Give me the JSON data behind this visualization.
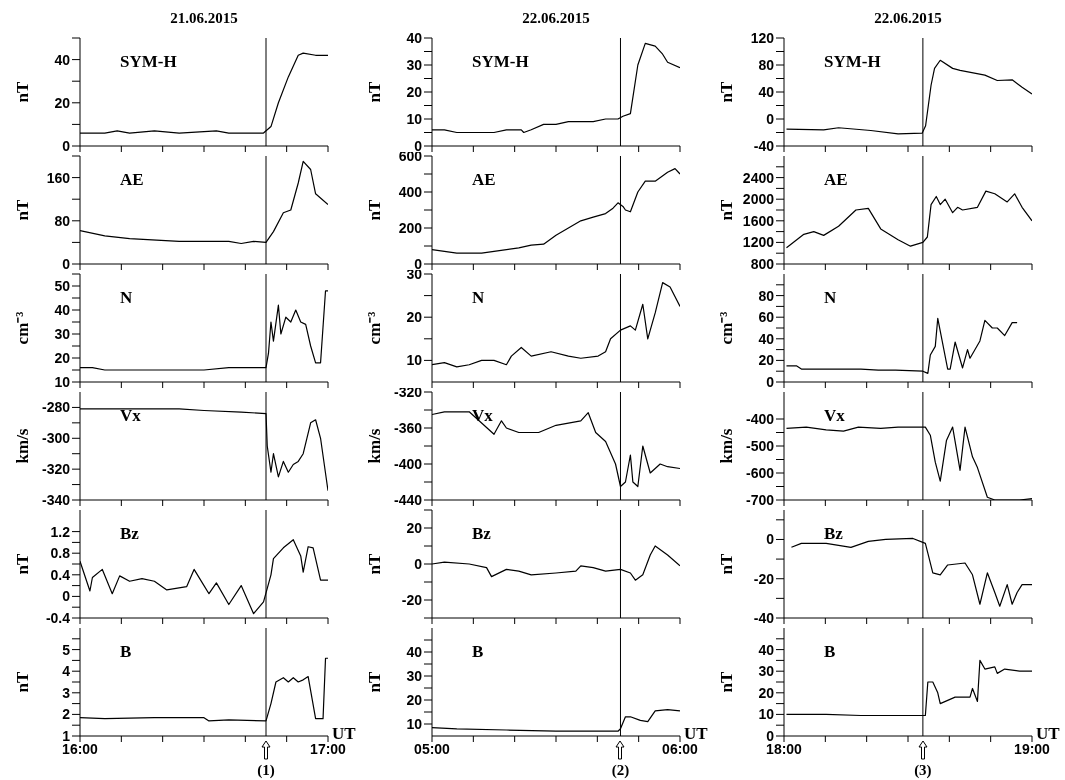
{
  "chart_data": [
    {
      "type": "line",
      "title": "21.06.2015",
      "ylabel": "nT",
      "tick_labels": "y",
      "xlim": [
        16,
        17
      ],
      "xticks": [
        {
          "value": 16,
          "label": null
        },
        {
          "value": 16.1667,
          "label": null
        },
        {
          "value": 16.3333,
          "label": null
        },
        {
          "value": 16.5,
          "label": null
        },
        {
          "value": 16.6667,
          "label": null
        },
        {
          "value": 16.8333,
          "label": null
        },
        {
          "value": 17,
          "label": null
        }
      ],
      "ylim": [
        0,
        50
      ],
      "yticks": [
        0,
        {
          "value": 10,
          "label": null
        },
        20,
        {
          "value": 30,
          "label": null
        },
        40,
        {
          "value": 50,
          "label": null
        }
      ],
      "ref_lines": [
        {
          "axis": "x",
          "value": 16.75
        }
      ],
      "x": [
        16.0,
        16.1,
        16.15,
        16.2,
        16.3,
        16.4,
        16.55,
        16.6,
        16.74,
        16.77,
        16.8,
        16.84,
        16.88,
        16.9,
        16.95,
        17.0
      ],
      "series": [
        {
          "name": "SYM-H",
          "color": "#000000",
          "values": [
            6,
            6,
            7,
            6,
            7,
            6,
            7,
            6,
            6,
            9,
            20,
            32,
            42,
            43,
            42,
            42
          ]
        }
      ]
    },
    {
      "type": "line",
      "ylabel": "nT",
      "tick_labels": "y",
      "xlim": [
        16,
        17
      ],
      "xticks": [
        {
          "value": 16,
          "label": null
        },
        {
          "value": 16.1667,
          "label": null
        },
        {
          "value": 16.3333,
          "label": null
        },
        {
          "value": 16.5,
          "label": null
        },
        {
          "value": 16.6667,
          "label": null
        },
        {
          "value": 16.8333,
          "label": null
        },
        {
          "value": 17,
          "label": null
        }
      ],
      "ylim": [
        0,
        200
      ],
      "yticks": [
        0,
        {
          "value": 40,
          "label": null
        },
        80,
        {
          "value": 120,
          "label": null
        },
        160,
        {
          "value": 200,
          "label": null
        }
      ],
      "ref_lines": [
        {
          "axis": "x",
          "value": 16.75
        }
      ],
      "x": [
        16.0,
        16.1,
        16.2,
        16.4,
        16.6,
        16.65,
        16.7,
        16.75,
        16.78,
        16.82,
        16.85,
        16.88,
        16.9,
        16.93,
        16.95,
        17.0
      ],
      "series": [
        {
          "name": "AE",
          "color": "#000000",
          "values": [
            62,
            52,
            47,
            42,
            42,
            38,
            42,
            40,
            60,
            95,
            100,
            150,
            190,
            175,
            130,
            110
          ]
        }
      ]
    },
    {
      "type": "line",
      "ylabel": "cm⁻³",
      "tick_labels": "y",
      "xlim": [
        16,
        17
      ],
      "xticks": [
        {
          "value": 16,
          "label": null
        },
        {
          "value": 16.1667,
          "label": null
        },
        {
          "value": 16.3333,
          "label": null
        },
        {
          "value": 16.5,
          "label": null
        },
        {
          "value": 16.6667,
          "label": null
        },
        {
          "value": 16.8333,
          "label": null
        },
        {
          "value": 17,
          "label": null
        }
      ],
      "ylim": [
        10,
        55
      ],
      "yticks": [
        10,
        {
          "value": 15,
          "label": null
        },
        20,
        {
          "value": 25,
          "label": null
        },
        30,
        {
          "value": 35,
          "label": null
        },
        40,
        {
          "value": 45,
          "label": null
        },
        50,
        {
          "value": 55,
          "label": null
        }
      ],
      "ref_lines": [
        {
          "axis": "x",
          "value": 16.75
        }
      ],
      "x": [
        16.0,
        16.05,
        16.1,
        16.5,
        16.6,
        16.75,
        16.76,
        16.77,
        16.78,
        16.8,
        16.81,
        16.83,
        16.85,
        16.87,
        16.89,
        16.91,
        16.93,
        16.95,
        16.97,
        16.99,
        17.0
      ],
      "series": [
        {
          "name": "N",
          "color": "#000000",
          "values": [
            16,
            16,
            15,
            15,
            16,
            16,
            22,
            35,
            27,
            42,
            30,
            37,
            35,
            40,
            35,
            34,
            25,
            18,
            18,
            48,
            48
          ]
        }
      ]
    },
    {
      "type": "line",
      "ylabel": "km/s",
      "tick_labels": "y",
      "xlim": [
        16,
        17
      ],
      "xticks": [
        {
          "value": 16,
          "label": null
        },
        {
          "value": 16.1667,
          "label": null
        },
        {
          "value": 16.3333,
          "label": null
        },
        {
          "value": 16.5,
          "label": null
        },
        {
          "value": 16.6667,
          "label": null
        },
        {
          "value": 16.8333,
          "label": null
        },
        {
          "value": 17,
          "label": null
        }
      ],
      "ylim": [
        -340,
        -270
      ],
      "yticks": [
        -340,
        {
          "value": -330,
          "label": null
        },
        -320,
        {
          "value": -310,
          "label": null
        },
        -300,
        {
          "value": -290,
          "label": null
        },
        -280
      ],
      "ref_lines": [
        {
          "axis": "x",
          "value": 16.75
        }
      ],
      "x": [
        16.0,
        16.4,
        16.5,
        16.65,
        16.75,
        16.755,
        16.77,
        16.78,
        16.8,
        16.82,
        16.84,
        16.86,
        16.88,
        16.9,
        16.93,
        16.95,
        16.97,
        17.0
      ],
      "series": [
        {
          "name": "Vx",
          "color": "#000000",
          "values": [
            -281,
            -281,
            -282,
            -283,
            -284,
            -305,
            -322,
            -310,
            -325,
            -315,
            -322,
            -317,
            -315,
            -310,
            -290,
            -288,
            -300,
            -334
          ]
        }
      ]
    },
    {
      "type": "line",
      "ylabel": "nT",
      "tick_labels": "y",
      "xlim": [
        16,
        17
      ],
      "xticks": [
        {
          "value": 16,
          "label": null
        },
        {
          "value": 16.1667,
          "label": null
        },
        {
          "value": 16.3333,
          "label": null
        },
        {
          "value": 16.5,
          "label": null
        },
        {
          "value": 16.6667,
          "label": null
        },
        {
          "value": 16.8333,
          "label": null
        },
        {
          "value": 17,
          "label": null
        }
      ],
      "ylim": [
        -0.4,
        1.6
      ],
      "yticks": [
        -0.4,
        {
          "value": -0.2,
          "label": null
        },
        0,
        {
          "value": 0.2,
          "label": null
        },
        0.4,
        {
          "value": 0.6,
          "label": null
        },
        0.8,
        {
          "value": 1,
          "label": null
        },
        1.2
      ],
      "ref_lines": [
        {
          "axis": "x",
          "value": 16.75
        }
      ],
      "x": [
        16.0,
        16.04,
        16.05,
        16.09,
        16.13,
        16.16,
        16.2,
        16.25,
        16.3,
        16.35,
        16.43,
        16.46,
        16.5,
        16.52,
        16.55,
        16.6,
        16.65,
        16.7,
        16.74,
        16.77,
        16.78,
        16.82,
        16.86,
        16.89,
        16.9,
        16.92,
        16.94,
        16.97,
        17.0
      ],
      "series": [
        {
          "name": "Bz",
          "color": "#000000",
          "values": [
            0.65,
            0.1,
            0.35,
            0.5,
            0.05,
            0.38,
            0.28,
            0.33,
            0.28,
            0.12,
            0.18,
            0.5,
            0.2,
            0.05,
            0.25,
            -0.15,
            0.2,
            -0.32,
            -0.1,
            0.4,
            0.7,
            0.9,
            1.05,
            0.75,
            0.45,
            0.92,
            0.9,
            0.3,
            0.3
          ]
        }
      ]
    },
    {
      "type": "line",
      "ylabel": "nT",
      "xlabel": "UT",
      "xlim": [
        16,
        17
      ],
      "xticks": [
        {
          "value": 16,
          "label": "16:00"
        },
        {
          "value": 16.1667,
          "label": null
        },
        {
          "value": 16.3333,
          "label": null
        },
        {
          "value": 16.5,
          "label": null
        },
        {
          "value": 16.6667,
          "label": null
        },
        {
          "value": 16.8333,
          "label": null
        },
        {
          "value": 17,
          "label": "17:00"
        }
      ],
      "ylim": [
        1,
        6
      ],
      "yticks": [
        1,
        {
          "value": 1.5,
          "label": null
        },
        2,
        {
          "value": 2.5,
          "label": null
        },
        3,
        {
          "value": 3.5,
          "label": null
        },
        4,
        {
          "value": 4.5,
          "label": null
        },
        5,
        {
          "value": 5.5,
          "label": null
        }
      ],
      "ref_lines": [
        {
          "axis": "x",
          "value": 16.75
        }
      ],
      "annotations": [
        "(1)"
      ],
      "x": [
        16.0,
        16.1,
        16.3,
        16.5,
        16.52,
        16.6,
        16.75,
        16.77,
        16.79,
        16.82,
        16.84,
        16.86,
        16.88,
        16.9,
        16.92,
        16.95,
        16.98,
        16.99,
        17.0
      ],
      "series": [
        {
          "name": "B",
          "color": "#000000",
          "values": [
            1.85,
            1.8,
            1.85,
            1.85,
            1.7,
            1.75,
            1.7,
            2.5,
            3.5,
            3.7,
            3.5,
            3.7,
            3.5,
            3.6,
            3.75,
            1.8,
            1.8,
            4.6,
            4.6
          ]
        }
      ]
    },
    {
      "type": "line",
      "title": "22.06.2015",
      "ylabel": "nT",
      "tick_labels": "y",
      "xlim": [
        5,
        6
      ],
      "xticks": [
        {
          "value": 5,
          "label": null
        },
        {
          "value": 5.1667,
          "label": null
        },
        {
          "value": 5.3333,
          "label": null
        },
        {
          "value": 5.5,
          "label": null
        },
        {
          "value": 5.6667,
          "label": null
        },
        {
          "value": 5.8333,
          "label": null
        },
        {
          "value": 6,
          "label": null
        }
      ],
      "ylim": [
        0,
        40
      ],
      "yticks": [
        0,
        {
          "value": 5,
          "label": null
        },
        10,
        {
          "value": 15,
          "label": null
        },
        20,
        {
          "value": 25,
          "label": null
        },
        30,
        {
          "value": 35,
          "label": null
        },
        40
      ],
      "ref_lines": [
        {
          "axis": "x",
          "value": 5.76
        }
      ],
      "x": [
        5.0,
        5.05,
        5.1,
        5.25,
        5.3,
        5.36,
        5.37,
        5.4,
        5.45,
        5.5,
        5.55,
        5.65,
        5.7,
        5.75,
        5.77,
        5.8,
        5.83,
        5.86,
        5.9,
        5.93,
        5.95,
        6.0
      ],
      "series": [
        {
          "name": "SYM-H",
          "color": "#000000",
          "values": [
            6,
            6,
            5,
            5,
            6,
            6,
            5,
            6,
            8,
            8,
            9,
            9,
            10,
            10,
            11,
            12,
            30,
            38,
            37,
            34,
            31,
            29
          ]
        }
      ]
    },
    {
      "type": "line",
      "ylabel": "nT",
      "tick_labels": "y",
      "xlim": [
        5,
        6
      ],
      "xticks": [
        {
          "value": 5,
          "label": null
        },
        {
          "value": 5.1667,
          "label": null
        },
        {
          "value": 5.3333,
          "label": null
        },
        {
          "value": 5.5,
          "label": null
        },
        {
          "value": 5.6667,
          "label": null
        },
        {
          "value": 5.8333,
          "label": null
        },
        {
          "value": 6,
          "label": null
        }
      ],
      "ylim": [
        0,
        600
      ],
      "yticks": [
        0,
        {
          "value": 100,
          "label": null
        },
        200,
        {
          "value": 300,
          "label": null
        },
        400,
        {
          "value": 500,
          "label": null
        },
        600
      ],
      "ref_lines": [
        {
          "axis": "x",
          "value": 5.76
        }
      ],
      "x": [
        5.0,
        5.05,
        5.1,
        5.2,
        5.25,
        5.35,
        5.4,
        5.45,
        5.5,
        5.55,
        5.6,
        5.65,
        5.7,
        5.73,
        5.75,
        5.77,
        5.78,
        5.8,
        5.83,
        5.86,
        5.9,
        5.95,
        5.98,
        6.0
      ],
      "series": [
        {
          "name": "AE",
          "color": "#000000",
          "values": [
            80,
            70,
            60,
            60,
            70,
            90,
            105,
            110,
            160,
            200,
            240,
            260,
            280,
            310,
            340,
            320,
            300,
            290,
            400,
            460,
            460,
            510,
            530,
            500
          ]
        }
      ]
    },
    {
      "type": "line",
      "ylabel": "cm⁻³",
      "tick_labels": "y",
      "xlim": [
        5,
        6
      ],
      "xticks": [
        {
          "value": 5,
          "label": null
        },
        {
          "value": 5.1667,
          "label": null
        },
        {
          "value": 5.3333,
          "label": null
        },
        {
          "value": 5.5,
          "label": null
        },
        {
          "value": 5.6667,
          "label": null
        },
        {
          "value": 5.8333,
          "label": null
        },
        {
          "value": 6,
          "label": null
        }
      ],
      "ylim": [
        5,
        30
      ],
      "yticks": [
        10,
        {
          "value": 15,
          "label": null
        },
        20,
        {
          "value": 25,
          "label": null
        },
        30
      ],
      "ref_lines": [
        {
          "axis": "x",
          "value": 5.76
        }
      ],
      "x": [
        5.0,
        5.05,
        5.1,
        5.15,
        5.2,
        5.25,
        5.3,
        5.32,
        5.36,
        5.4,
        5.48,
        5.55,
        5.6,
        5.67,
        5.7,
        5.72,
        5.76,
        5.8,
        5.82,
        5.85,
        5.87,
        5.9,
        5.93,
        5.96,
        6.0
      ],
      "series": [
        {
          "name": "N",
          "color": "#000000",
          "values": [
            9,
            9.5,
            8.5,
            9,
            10,
            10,
            9,
            11,
            13,
            11,
            12,
            11,
            10.5,
            11,
            12,
            15,
            17,
            18,
            17,
            23,
            15,
            21,
            28,
            27,
            22.5
          ]
        }
      ]
    },
    {
      "type": "line",
      "ylabel": "km/s",
      "tick_labels": "y",
      "xlim": [
        5,
        6
      ],
      "xticks": [
        {
          "value": 5,
          "label": null
        },
        {
          "value": 5.1667,
          "label": null
        },
        {
          "value": 5.3333,
          "label": null
        },
        {
          "value": 5.5,
          "label": null
        },
        {
          "value": 5.6667,
          "label": null
        },
        {
          "value": 5.8333,
          "label": null
        },
        {
          "value": 6,
          "label": null
        }
      ],
      "ylim": [
        -440,
        -320
      ],
      "yticks": [
        -440,
        {
          "value": -420,
          "label": null
        },
        -400,
        {
          "value": -380,
          "label": null
        },
        -360,
        {
          "value": -340,
          "label": null
        },
        -320
      ],
      "ref_lines": [
        {
          "axis": "x",
          "value": 5.76
        }
      ],
      "x": [
        5.0,
        5.05,
        5.15,
        5.25,
        5.28,
        5.3,
        5.35,
        5.43,
        5.5,
        5.6,
        5.63,
        5.66,
        5.7,
        5.74,
        5.76,
        5.78,
        5.8,
        5.81,
        5.83,
        5.85,
        5.88,
        5.92,
        5.95,
        6.0
      ],
      "series": [
        {
          "name": "Vx",
          "color": "#000000",
          "values": [
            -345,
            -342,
            -342,
            -367,
            -352,
            -360,
            -365,
            -365,
            -357,
            -352,
            -343,
            -365,
            -375,
            -400,
            -425,
            -420,
            -390,
            -420,
            -425,
            -380,
            -410,
            -400,
            -403,
            -405
          ]
        }
      ]
    },
    {
      "type": "line",
      "ylabel": "nT",
      "tick_labels": "y",
      "xlim": [
        5,
        6
      ],
      "xticks": [
        {
          "value": 5,
          "label": null
        },
        {
          "value": 5.1667,
          "label": null
        },
        {
          "value": 5.3333,
          "label": null
        },
        {
          "value": 5.5,
          "label": null
        },
        {
          "value": 5.6667,
          "label": null
        },
        {
          "value": 5.8333,
          "label": null
        },
        {
          "value": 6,
          "label": null
        }
      ],
      "ylim": [
        -30,
        30
      ],
      "yticks": [
        {
          "value": -30,
          "label": null
        },
        -20,
        {
          "value": -10,
          "label": null
        },
        0,
        {
          "value": 10,
          "label": null
        },
        20,
        {
          "value": 30,
          "label": null
        }
      ],
      "ref_lines": [
        {
          "axis": "x",
          "value": 5.76
        }
      ],
      "x": [
        5.0,
        5.05,
        5.15,
        5.22,
        5.24,
        5.3,
        5.35,
        5.4,
        5.5,
        5.58,
        5.6,
        5.65,
        5.7,
        5.76,
        5.8,
        5.82,
        5.85,
        5.88,
        5.9,
        5.95,
        6.0
      ],
      "series": [
        {
          "name": "Bz",
          "color": "#000000",
          "values": [
            0,
            1,
            0,
            -2,
            -7,
            -3,
            -4,
            -6,
            -5,
            -4,
            -1,
            -2,
            -4,
            -3,
            -5,
            -9,
            -6,
            5,
            10,
            5,
            -1
          ]
        }
      ]
    },
    {
      "type": "line",
      "ylabel": "nT",
      "xlabel": "UT",
      "xlim": [
        5,
        6
      ],
      "xticks": [
        {
          "value": 5,
          "label": "05:00"
        },
        {
          "value": 5.1667,
          "label": null
        },
        {
          "value": 5.3333,
          "label": null
        },
        {
          "value": 5.5,
          "label": null
        },
        {
          "value": 5.6667,
          "label": null
        },
        {
          "value": 5.8333,
          "label": null
        },
        {
          "value": 6,
          "label": "06:00"
        }
      ],
      "ylim": [
        5,
        50
      ],
      "yticks": [
        10,
        {
          "value": 15,
          "label": null
        },
        20,
        {
          "value": 25,
          "label": null
        },
        30,
        {
          "value": 35,
          "label": null
        },
        40,
        {
          "value": 45,
          "label": null
        }
      ],
      "ref_lines": [
        {
          "axis": "x",
          "value": 5.76
        }
      ],
      "annotations": [
        "(2)"
      ],
      "x": [
        5.0,
        5.1,
        5.3,
        5.5,
        5.75,
        5.76,
        5.78,
        5.8,
        5.84,
        5.87,
        5.9,
        5.95,
        6.0
      ],
      "series": [
        {
          "name": "B",
          "color": "#000000",
          "values": [
            8.5,
            8,
            7.5,
            7,
            7,
            8,
            13,
            13,
            11.5,
            11,
            15.5,
            16,
            15.5
          ]
        }
      ]
    },
    {
      "type": "line",
      "title": "22.06.2015",
      "ylabel": "nT",
      "tick_labels": "y",
      "xlim": [
        18,
        19
      ],
      "xticks": [
        {
          "value": 18,
          "label": null
        },
        {
          "value": 18.1667,
          "label": null
        },
        {
          "value": 18.3333,
          "label": null
        },
        {
          "value": 18.5,
          "label": null
        },
        {
          "value": 18.6667,
          "label": null
        },
        {
          "value": 18.8333,
          "label": null
        },
        {
          "value": 19,
          "label": null
        }
      ],
      "ylim": [
        -40,
        120
      ],
      "yticks": [
        -40,
        {
          "value": -20,
          "label": null
        },
        0,
        {
          "value": 20,
          "label": null
        },
        40,
        {
          "value": 60,
          "label": null
        },
        80,
        {
          "value": 100,
          "label": null
        },
        120
      ],
      "ref_lines": [
        {
          "axis": "x",
          "value": 18.56
        }
      ],
      "x": [
        18.01,
        18.16,
        18.22,
        18.35,
        18.46,
        18.557,
        18.571,
        18.593,
        18.607,
        18.63,
        18.68,
        18.71,
        18.81,
        18.86,
        18.92,
        18.96,
        19.0
      ],
      "series": [
        {
          "name": "SYM-H",
          "color": "#000000",
          "values": [
            -15,
            -16,
            -13,
            -17,
            -22,
            -21,
            -10,
            50,
            75,
            87,
            75,
            72,
            65,
            57,
            58,
            47,
            37
          ]
        }
      ]
    },
    {
      "type": "line",
      "ylabel": "nT",
      "tick_labels": "y",
      "xlim": [
        18,
        19
      ],
      "xticks": [
        {
          "value": 18,
          "label": null
        },
        {
          "value": 18.1667,
          "label": null
        },
        {
          "value": 18.3333,
          "label": null
        },
        {
          "value": 18.5,
          "label": null
        },
        {
          "value": 18.6667,
          "label": null
        },
        {
          "value": 18.8333,
          "label": null
        },
        {
          "value": 19,
          "label": null
        }
      ],
      "ylim": [
        800,
        2800
      ],
      "yticks": [
        800,
        {
          "value": 1000,
          "label": null
        },
        1200,
        {
          "value": 1400,
          "label": null
        },
        1600,
        {
          "value": 1800,
          "label": null
        },
        2000,
        {
          "value": 2200,
          "label": null
        },
        2400,
        {
          "value": 2600,
          "label": null
        }
      ],
      "ref_lines": [
        {
          "axis": "x",
          "value": 18.56
        }
      ],
      "x": [
        18.01,
        18.08,
        18.12,
        18.16,
        18.22,
        18.29,
        18.34,
        18.39,
        18.46,
        18.51,
        18.56,
        18.578,
        18.593,
        18.614,
        18.63,
        18.65,
        18.68,
        18.7,
        18.72,
        18.78,
        18.814,
        18.85,
        18.9,
        18.93,
        18.96,
        19.0
      ],
      "series": [
        {
          "name": "AE",
          "color": "#000000",
          "values": [
            1100,
            1350,
            1400,
            1330,
            1500,
            1800,
            1830,
            1450,
            1250,
            1130,
            1200,
            1300,
            1900,
            2050,
            1900,
            2000,
            1750,
            1850,
            1800,
            1850,
            2150,
            2100,
            1950,
            2100,
            1850,
            1600
          ]
        }
      ]
    },
    {
      "type": "line",
      "ylabel": "cm⁻³",
      "tick_labels": "y",
      "xlim": [
        18,
        19
      ],
      "xticks": [
        {
          "value": 18,
          "label": null
        },
        {
          "value": 18.1667,
          "label": null
        },
        {
          "value": 18.3333,
          "label": null
        },
        {
          "value": 18.5,
          "label": null
        },
        {
          "value": 18.6667,
          "label": null
        },
        {
          "value": 18.8333,
          "label": null
        },
        {
          "value": 19,
          "label": null
        }
      ],
      "ylim": [
        0,
        100
      ],
      "yticks": [
        0,
        {
          "value": 10,
          "label": null
        },
        20,
        {
          "value": 30,
          "label": null
        },
        40,
        {
          "value": 50,
          "label": null
        },
        60,
        {
          "value": 70,
          "label": null
        },
        80,
        {
          "value": 90,
          "label": null
        }
      ],
      "ref_lines": [
        {
          "axis": "x",
          "value": 18.56
        }
      ],
      "x": [
        18.01,
        18.05,
        18.07,
        18.16,
        18.31,
        18.38,
        18.45,
        18.56,
        18.58,
        18.59,
        18.61,
        18.62,
        18.66,
        18.67,
        18.69,
        18.72,
        18.74,
        18.75,
        18.79,
        18.81,
        18.84,
        18.86,
        18.89,
        18.92,
        18.94
      ],
      "series": [
        {
          "name": "N",
          "color": "#000000",
          "values": [
            15,
            15,
            12,
            12,
            12,
            11,
            11,
            10,
            8,
            25,
            33,
            59,
            12,
            12,
            37,
            13,
            30,
            22,
            38,
            57,
            50,
            50,
            43,
            55,
            55
          ]
        }
      ]
    },
    {
      "type": "line",
      "ylabel": "km/s",
      "tick_labels": "y",
      "xlim": [
        18,
        19
      ],
      "xticks": [
        {
          "value": 18,
          "label": null
        },
        {
          "value": 18.1667,
          "label": null
        },
        {
          "value": 18.3333,
          "label": null
        },
        {
          "value": 18.5,
          "label": null
        },
        {
          "value": 18.6667,
          "label": null
        },
        {
          "value": 18.8333,
          "label": null
        },
        {
          "value": 19,
          "label": null
        }
      ],
      "ylim": [
        -700,
        -300
      ],
      "yticks": [
        -700,
        {
          "value": -650,
          "label": null
        },
        -600,
        {
          "value": -550,
          "label": null
        },
        -500,
        {
          "value": -450,
          "label": null
        },
        -400
      ],
      "ref_lines": [
        {
          "axis": "x",
          "value": 18.56
        }
      ],
      "x": [
        18.01,
        18.09,
        18.17,
        18.24,
        18.3,
        18.39,
        18.46,
        18.57,
        18.59,
        18.61,
        18.63,
        18.655,
        18.68,
        18.71,
        18.73,
        18.76,
        18.78,
        18.82,
        18.85,
        18.9,
        18.95,
        19.0
      ],
      "series": [
        {
          "name": "Vx",
          "color": "#000000",
          "values": [
            -435,
            -430,
            -440,
            -445,
            -430,
            -435,
            -430,
            -430,
            -460,
            -560,
            -630,
            -480,
            -430,
            -590,
            -430,
            -540,
            -580,
            -690,
            -700,
            -700,
            -700,
            -695
          ]
        }
      ]
    },
    {
      "type": "line",
      "ylabel": "nT",
      "tick_labels": "y",
      "xlim": [
        18,
        19
      ],
      "xticks": [
        {
          "value": 18,
          "label": null
        },
        {
          "value": 18.1667,
          "label": null
        },
        {
          "value": 18.3333,
          "label": null
        },
        {
          "value": 18.5,
          "label": null
        },
        {
          "value": 18.6667,
          "label": null
        },
        {
          "value": 18.8333,
          "label": null
        },
        {
          "value": 19,
          "label": null
        }
      ],
      "ylim": [
        -40,
        15
      ],
      "yticks": [
        -40,
        {
          "value": -30,
          "label": null
        },
        -20,
        {
          "value": -10,
          "label": null
        },
        0,
        {
          "value": 10,
          "label": null
        }
      ],
      "ref_lines": [
        {
          "axis": "x",
          "value": 18.56
        }
      ],
      "x": [
        18.03,
        18.07,
        18.17,
        18.27,
        18.34,
        18.41,
        18.52,
        18.57,
        18.58,
        18.6,
        18.63,
        18.66,
        18.73,
        18.76,
        18.79,
        18.82,
        18.85,
        18.87,
        18.9,
        18.92,
        18.94,
        18.96,
        19.0
      ],
      "series": [
        {
          "name": "Bz",
          "color": "#000000",
          "values": [
            -4,
            -2,
            -2,
            -4,
            -1,
            0,
            0.5,
            -2,
            -7,
            -17,
            -18,
            -13,
            -12,
            -18,
            -33,
            -17,
            -27,
            -34,
            -23,
            -33,
            -27,
            -23,
            -23
          ]
        }
      ]
    },
    {
      "type": "line",
      "ylabel": "nT",
      "xlabel": "UT",
      "xlim": [
        18,
        19
      ],
      "xticks": [
        {
          "value": 18,
          "label": "18:00"
        },
        {
          "value": 18.1667,
          "label": null
        },
        {
          "value": 18.3333,
          "label": null
        },
        {
          "value": 18.5,
          "label": null
        },
        {
          "value": 18.6667,
          "label": null
        },
        {
          "value": 18.8333,
          "label": null
        },
        {
          "value": 19,
          "label": "19:00"
        }
      ],
      "ylim": [
        0,
        50
      ],
      "yticks": [
        0,
        {
          "value": 5,
          "label": null
        },
        10,
        {
          "value": 15,
          "label": null
        },
        20,
        {
          "value": 25,
          "label": null
        },
        30,
        {
          "value": 35,
          "label": null
        },
        40,
        {
          "value": 45,
          "label": null
        }
      ],
      "ref_lines": [
        {
          "axis": "x",
          "value": 18.56
        }
      ],
      "annotations": [
        "(3)"
      ],
      "x": [
        18.01,
        18.17,
        18.31,
        18.46,
        18.57,
        18.58,
        18.6,
        18.62,
        18.63,
        18.69,
        18.75,
        18.76,
        18.78,
        18.79,
        18.81,
        18.85,
        18.86,
        18.89,
        18.95,
        19.0
      ],
      "series": [
        {
          "name": "B",
          "color": "#000000",
          "values": [
            10,
            10,
            9.5,
            9.5,
            9.5,
            25,
            25,
            20,
            15,
            18,
            18,
            22,
            16,
            35,
            31,
            32,
            29,
            31,
            30,
            30
          ]
        }
      ]
    }
  ]
}
